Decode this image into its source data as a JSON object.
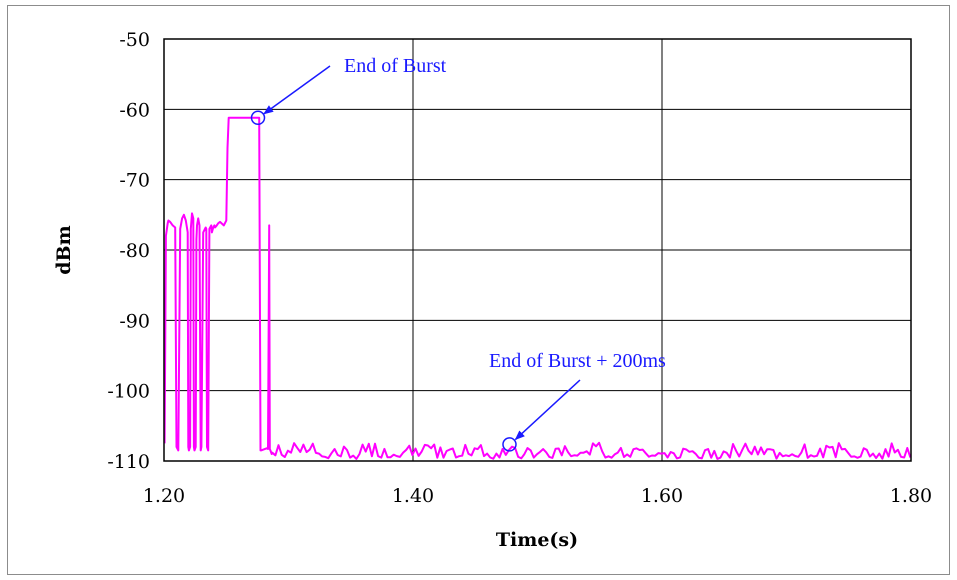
{
  "chart_data": {
    "type": "line",
    "title": "",
    "xlabel": "Time(s)",
    "ylabel": "dBm",
    "xlim": [
      1.2,
      1.8
    ],
    "ylim": [
      -110,
      -50
    ],
    "x_ticks": [
      "1.20",
      "1.40",
      "1.60",
      "1.80"
    ],
    "y_ticks": [
      "-50",
      "-60",
      "-70",
      "-80",
      "-90",
      "-100",
      "-110"
    ],
    "grid": true,
    "series": [
      {
        "color": "#ff00ff",
        "x": [
          1.2005,
          1.2015,
          1.203,
          1.2035,
          1.205,
          1.207,
          1.209,
          1.21,
          1.2115,
          1.213,
          1.2145,
          1.216,
          1.2175,
          1.219,
          1.2195,
          1.22,
          1.221,
          1.2215,
          1.2225,
          1.2235,
          1.224,
          1.2245,
          1.2255,
          1.226,
          1.2265,
          1.2275,
          1.2285,
          1.2295,
          1.23,
          1.2315,
          1.2335,
          1.234,
          1.2345,
          1.2355,
          1.2365,
          1.238,
          1.2385,
          1.2395,
          1.2405,
          1.241,
          1.242,
          1.2435,
          1.245,
          1.248,
          1.25,
          1.251,
          1.252,
          1.253,
          1.276,
          1.2765,
          1.2775,
          1.278,
          1.2825,
          1.2835,
          1.2845,
          1.285,
          1.2855,
          1.2865
        ],
        "values": [
          -107.5,
          -78,
          -76.2,
          -75.8,
          -76,
          -76.5,
          -76.8,
          -108,
          -108.5,
          -77,
          -75.5,
          -75,
          -75.8,
          -77.5,
          -108,
          -108.5,
          -108,
          -77,
          -74.8,
          -75.5,
          -108,
          -108.5,
          -108,
          -78.5,
          -76.5,
          -75.5,
          -76.5,
          -108.5,
          -108,
          -77.5,
          -76.8,
          -77,
          -108,
          -108.5,
          -77,
          -76.5,
          -77.5,
          -76.8,
          -76.5,
          -76.8,
          -76.6,
          -76.2,
          -76,
          -76.5,
          -75.8,
          -65.5,
          -61.2,
          -61.2,
          -61.2,
          -61.2,
          -108.5,
          -108.5,
          -108.2,
          -108.3,
          -76.5,
          -108.3,
          -108.5,
          -109
        ],
        "noise_floor": {
          "x_start": 1.287,
          "x_end": 1.8,
          "step": 0.0025,
          "mean": -108.8,
          "min": -109.7,
          "max": -107.4
        }
      }
    ],
    "annotations": [
      {
        "text": "End of Burst",
        "x": 1.2755,
        "y": -61.2
      },
      {
        "text": "End of Burst + 200ms",
        "x": 1.4775,
        "y": -107.5
      }
    ]
  }
}
